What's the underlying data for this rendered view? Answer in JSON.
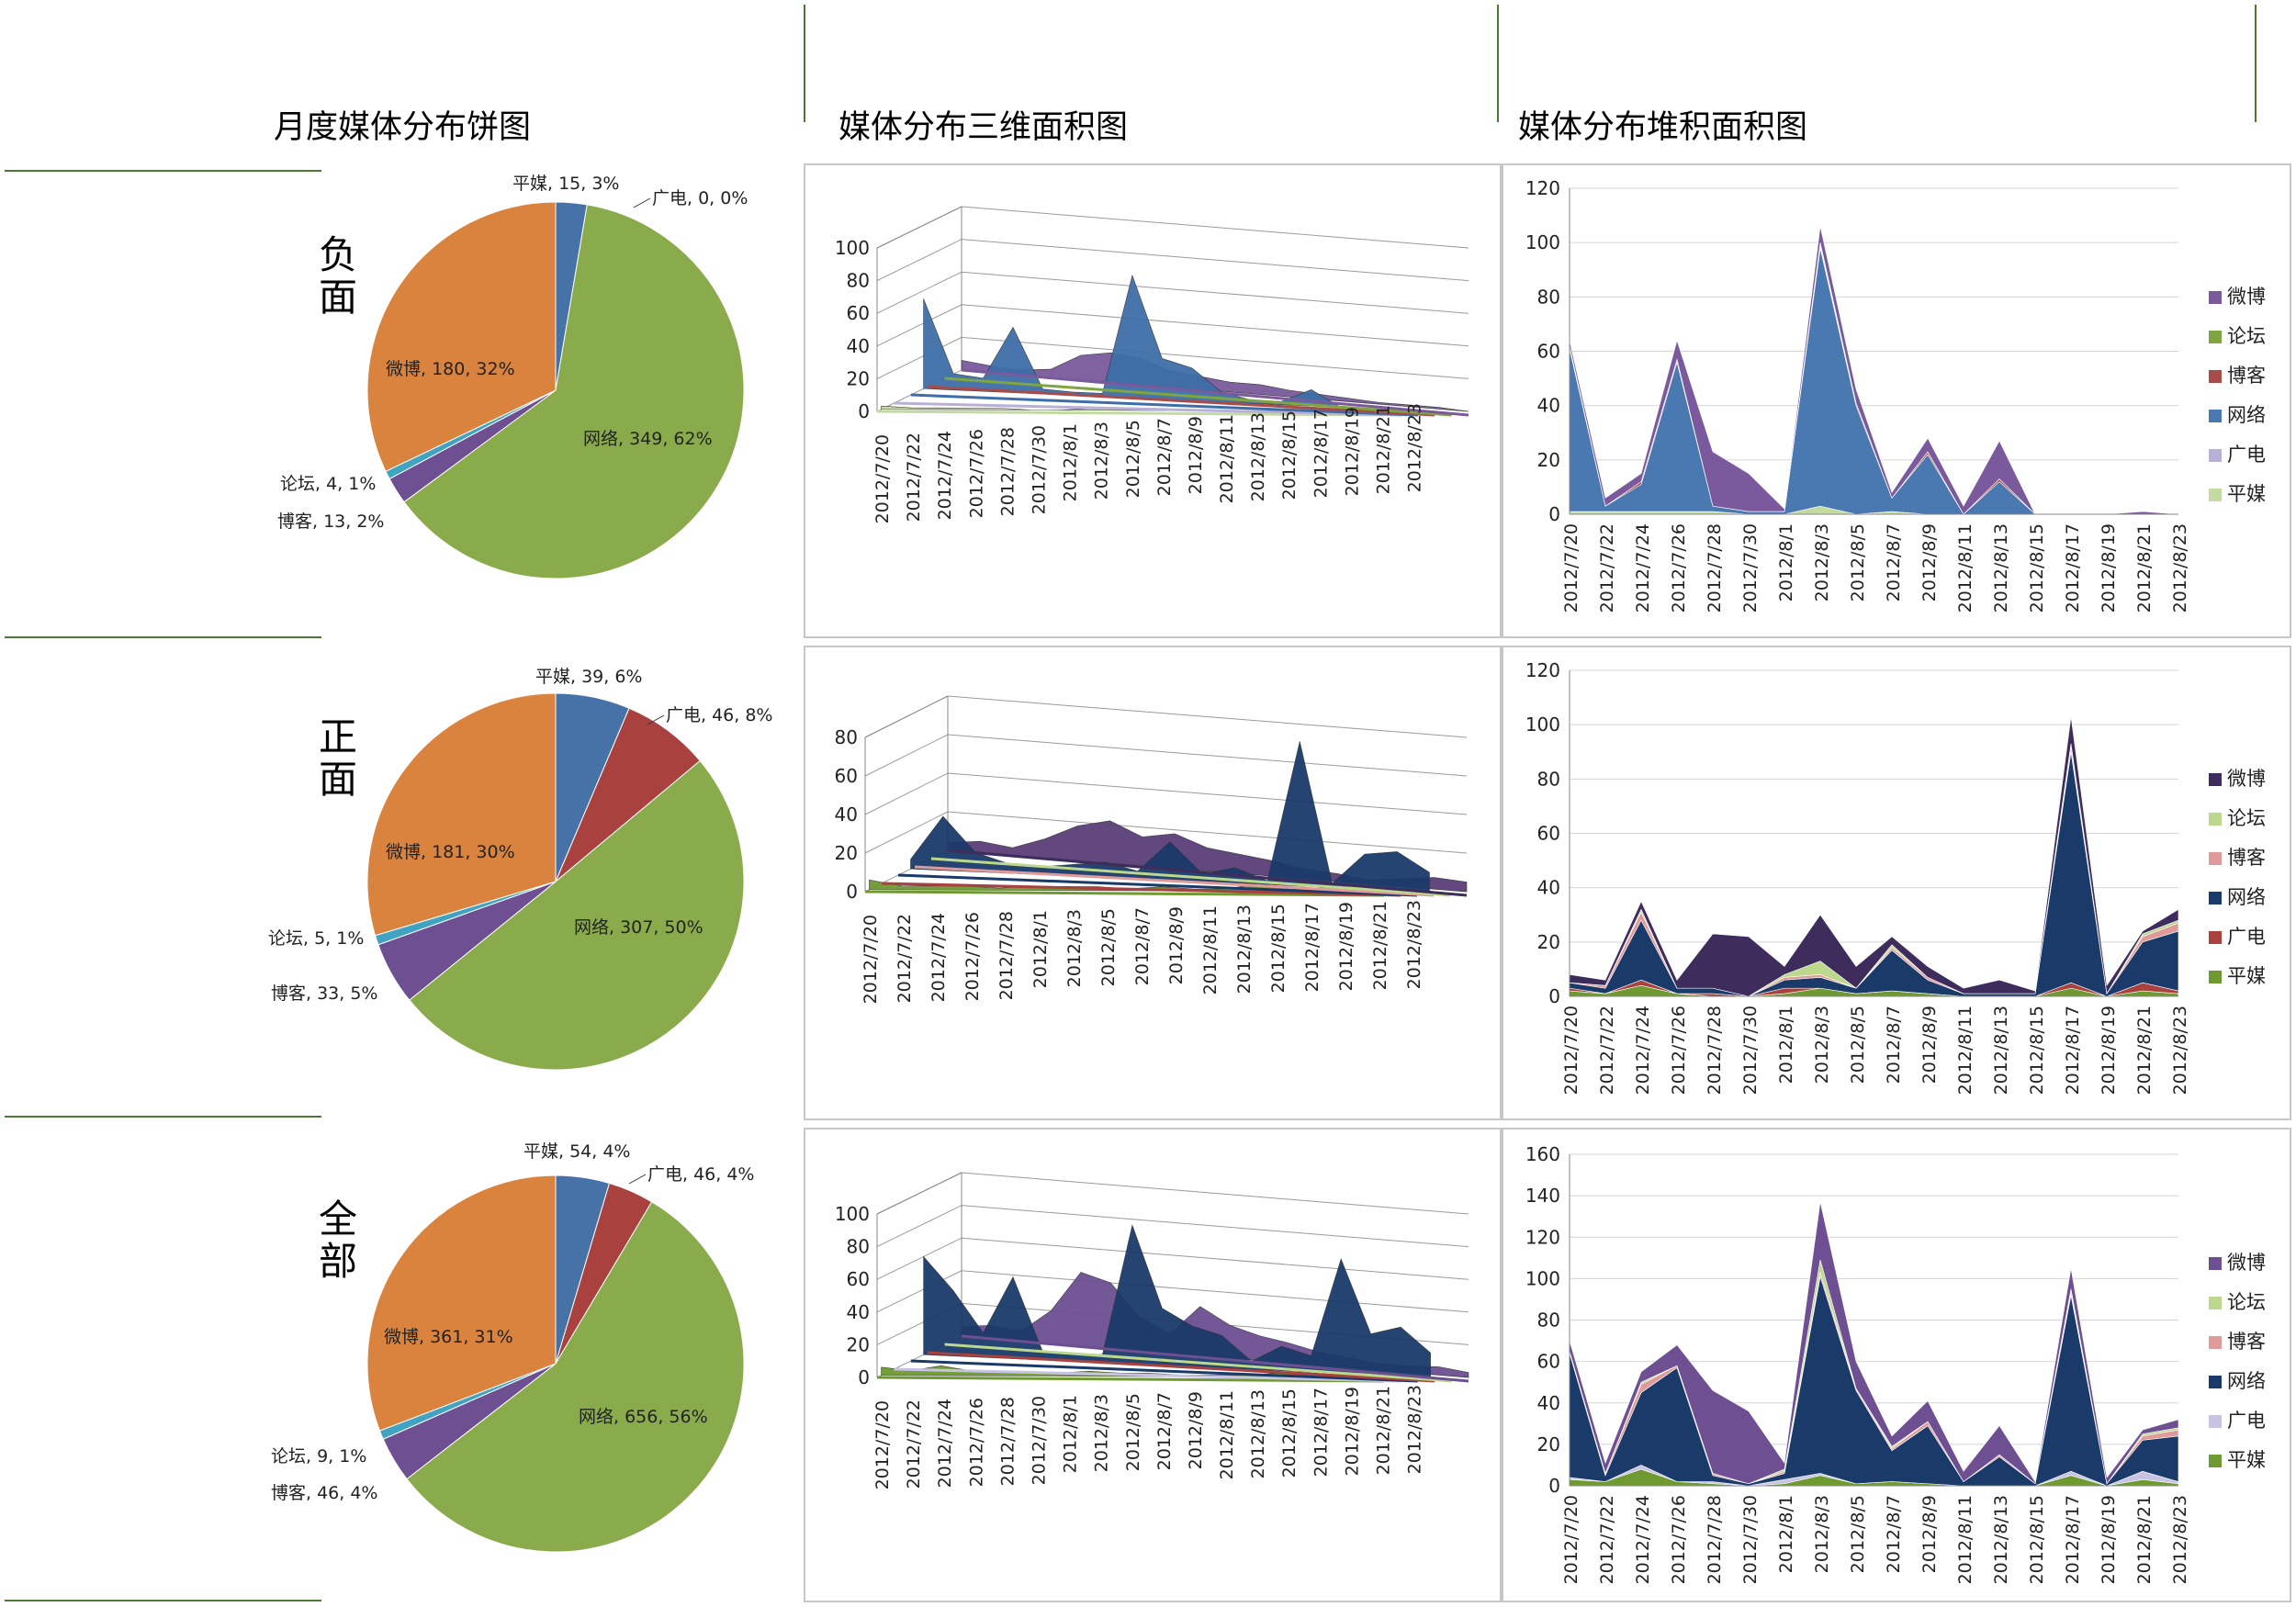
{
  "headers": {
    "pie": "月度媒体分布饼图",
    "area3d": "媒体分布三维面积图",
    "stacked": "媒体分布堆积面积图"
  },
  "rows": [
    {
      "label": "负面"
    },
    {
      "label": "正面"
    },
    {
      "label": "全部"
    }
  ],
  "colors": {
    "平媒": "#4672a8",
    "广电": "#a9413f",
    "网络": "#8aab4c",
    "博客": "#6d4f92",
    "论坛": "#40a3c2",
    "微博": "#d9833e",
    "stack_negative": {
      "微博": "#7a5a9c",
      "论坛": "#7ea540",
      "博客": "#a84c4a",
      "网络": "#4a78b0",
      "广电": "#b8b0d6",
      "平媒": "#c3dba0"
    },
    "stack_positive": {
      "微博": "#3e2d5c",
      "论坛": "#bcd88c",
      "博客": "#e09a9a",
      "网络": "#1a3a6a",
      "广电": "#a9413f",
      "平媒": "#6f9a32"
    },
    "stack_all": {
      "微博": "#6d4f92",
      "论坛": "#bcd88c",
      "博客": "#e09a9a",
      "网络": "#1a3a6a",
      "广电": "#c9c3e3",
      "平媒": "#6f9a32"
    }
  },
  "chart_data": [
    {
      "type": "pie",
      "id": "pie-neg",
      "slices": [
        {
          "name": "平媒",
          "value": 15,
          "label": "平媒, 15, 3%"
        },
        {
          "name": "广电",
          "value": 0,
          "label": "广电, 0, 0%"
        },
        {
          "name": "网络",
          "value": 349,
          "label": "网络, 349, 62%"
        },
        {
          "name": "博客",
          "value": 13,
          "label": "博客, 13, 2%"
        },
        {
          "name": "论坛",
          "value": 4,
          "label": "论坛, 4, 1%"
        },
        {
          "name": "微博",
          "value": 180,
          "label": "微博, 180, 32%"
        }
      ]
    },
    {
      "type": "pie",
      "id": "pie-pos",
      "slices": [
        {
          "name": "平媒",
          "value": 39,
          "label": "平媒, 39, 6%"
        },
        {
          "name": "广电",
          "value": 46,
          "label": "广电, 46, 8%"
        },
        {
          "name": "网络",
          "value": 307,
          "label": "网络, 307, 50%"
        },
        {
          "name": "博客",
          "value": 33,
          "label": "博客, 33, 5%"
        },
        {
          "name": "论坛",
          "value": 5,
          "label": "论坛, 5, 1%"
        },
        {
          "name": "微博",
          "value": 181,
          "label": "微博, 181, 30%"
        }
      ]
    },
    {
      "type": "pie",
      "id": "pie-all",
      "slices": [
        {
          "name": "平媒",
          "value": 54,
          "label": "平媒, 54, 4%"
        },
        {
          "name": "广电",
          "value": 46,
          "label": "广电, 46, 4%"
        },
        {
          "name": "网络",
          "value": 656,
          "label": "网络, 656, 56%"
        },
        {
          "name": "博客",
          "value": 46,
          "label": "博客, 46, 4%"
        },
        {
          "name": "论坛",
          "value": 9,
          "label": "论坛, 9, 1%"
        },
        {
          "name": "微博",
          "value": 361,
          "label": "微博, 361, 31%"
        }
      ]
    },
    {
      "type": "area",
      "id": "area3d-neg",
      "ylim": [
        0,
        100
      ],
      "yticks": [
        0,
        20,
        40,
        60,
        80,
        100
      ],
      "x": [
        "2012/7/20",
        "2012/7/22",
        "2012/7/24",
        "2012/7/26",
        "2012/7/28",
        "2012/7/30",
        "2012/8/1",
        "2012/8/3",
        "2012/8/5",
        "2012/8/7",
        "2012/8/9",
        "2012/8/11",
        "2012/8/13",
        "2012/8/15",
        "2012/8/17",
        "2012/8/19",
        "2012/8/21",
        "2012/8/23"
      ],
      "series": [
        {
          "name": "微博",
          "values": [
            6,
            4,
            3,
            5,
            15,
            18,
            16,
            10,
            8,
            6,
            6,
            4,
            3,
            2,
            1,
            1,
            1,
            0
          ]
        },
        {
          "name": "网络",
          "values": [
            55,
            10,
            8,
            40,
            3,
            2,
            2,
            75,
            25,
            20,
            6,
            2,
            2,
            10,
            0,
            0,
            0,
            0
          ]
        },
        {
          "name": "平媒",
          "values": [
            2,
            1,
            1,
            1,
            1,
            0,
            0,
            1,
            1,
            1,
            0,
            0,
            0,
            0,
            0,
            0,
            0,
            0
          ]
        }
      ]
    },
    {
      "type": "area",
      "id": "area3d-pos",
      "ylim": [
        0,
        80
      ],
      "yticks": [
        0,
        20,
        40,
        60,
        80
      ],
      "x": [
        "2012/7/20",
        "2012/7/22",
        "2012/7/24",
        "2012/7/26",
        "2012/7/28",
        "2012/8/1",
        "2012/8/3",
        "2012/8/5",
        "2012/8/7",
        "2012/8/9",
        "2012/8/11",
        "2012/8/13",
        "2012/8/15",
        "2012/8/17",
        "2012/8/19",
        "2012/8/21",
        "2012/8/23"
      ],
      "series": [
        {
          "name": "微博",
          "values": [
            4,
            6,
            4,
            10,
            18,
            22,
            15,
            18,
            12,
            10,
            8,
            5,
            4,
            2,
            4,
            6,
            5
          ]
        },
        {
          "name": "网络",
          "values": [
            5,
            28,
            10,
            5,
            4,
            6,
            8,
            4,
            20,
            4,
            8,
            2,
            75,
            2,
            18,
            20,
            10
          ]
        },
        {
          "name": "平媒",
          "values": [
            5,
            2,
            2,
            2,
            1,
            2,
            2,
            2,
            1,
            2,
            1,
            1,
            4,
            1,
            2,
            3,
            2
          ]
        }
      ]
    },
    {
      "type": "area",
      "id": "area3d-all",
      "ylim": [
        0,
        100
      ],
      "yticks": [
        0,
        20,
        40,
        60,
        80,
        100
      ],
      "x": [
        "2012/7/20",
        "2012/7/22",
        "2012/7/24",
        "2012/7/26",
        "2012/7/28",
        "2012/7/30",
        "2012/8/1",
        "2012/8/3",
        "2012/8/5",
        "2012/8/7",
        "2012/8/9",
        "2012/8/11",
        "2012/8/13",
        "2012/8/15",
        "2012/8/17",
        "2012/8/19",
        "2012/8/21",
        "2012/8/23"
      ],
      "series": [
        {
          "name": "微博",
          "values": [
            6,
            8,
            6,
            20,
            45,
            40,
            20,
            12,
            30,
            20,
            15,
            12,
            8,
            6,
            4,
            4,
            5,
            3
          ]
        },
        {
          "name": "网络",
          "values": [
            60,
            40,
            15,
            50,
            5,
            5,
            5,
            85,
            35,
            25,
            20,
            5,
            15,
            10,
            70,
            25,
            30,
            15
          ]
        },
        {
          "name": "平媒",
          "values": [
            5,
            3,
            6,
            3,
            2,
            2,
            2,
            3,
            2,
            2,
            1,
            1,
            1,
            2,
            3,
            2,
            3,
            2
          ]
        }
      ]
    },
    {
      "type": "area",
      "id": "stack-neg",
      "stacked": true,
      "ylim": [
        0,
        120
      ],
      "yticks": [
        0,
        20,
        40,
        60,
        80,
        100,
        120
      ],
      "x": [
        "2012/7/20",
        "2012/7/22",
        "2012/7/24",
        "2012/7/26",
        "2012/7/28",
        "2012/7/30",
        "2012/8/1",
        "2012/8/3",
        "2012/8/5",
        "2012/8/7",
        "2012/8/9",
        "2012/8/11",
        "2012/8/13",
        "2012/8/15",
        "2012/8/17",
        "2012/8/19",
        "2012/8/21",
        "2012/8/23"
      ],
      "legend": [
        "微博",
        "论坛",
        "博客",
        "网络",
        "广电",
        "平媒"
      ],
      "series": [
        {
          "name": "平媒",
          "values": [
            1,
            1,
            1,
            1,
            1,
            0,
            0,
            3,
            0,
            1,
            0,
            0,
            0,
            0,
            0,
            0,
            0,
            0
          ]
        },
        {
          "name": "广电",
          "values": [
            0,
            0,
            0,
            0,
            0,
            0,
            0,
            0,
            0,
            0,
            0,
            0,
            0,
            0,
            0,
            0,
            0,
            0
          ]
        },
        {
          "name": "网络",
          "values": [
            60,
            2,
            10,
            55,
            2,
            1,
            1,
            95,
            40,
            5,
            22,
            0,
            12,
            0,
            0,
            0,
            0,
            0
          ]
        },
        {
          "name": "博客",
          "values": [
            1,
            0,
            1,
            1,
            0,
            0,
            0,
            1,
            1,
            0,
            1,
            0,
            1,
            0,
            0,
            0,
            0,
            0
          ]
        },
        {
          "name": "论坛",
          "values": [
            0,
            0,
            0,
            0,
            0,
            0,
            0,
            1,
            0,
            0,
            0,
            0,
            0,
            0,
            0,
            0,
            0,
            0
          ]
        },
        {
          "name": "微博",
          "values": [
            2,
            3,
            3,
            7,
            20,
            14,
            1,
            6,
            5,
            2,
            5,
            3,
            14,
            0,
            0,
            0,
            1,
            0
          ]
        }
      ]
    },
    {
      "type": "area",
      "id": "stack-pos",
      "stacked": true,
      "ylim": [
        0,
        120
      ],
      "yticks": [
        0,
        20,
        40,
        60,
        80,
        100,
        120
      ],
      "x": [
        "2012/7/20",
        "2012/7/22",
        "2012/7/24",
        "2012/7/26",
        "2012/7/28",
        "2012/7/30",
        "2012/8/1",
        "2012/8/3",
        "2012/8/5",
        "2012/8/7",
        "2012/8/9",
        "2012/8/11",
        "2012/8/13",
        "2012/8/15",
        "2012/8/17",
        "2012/8/19",
        "2012/8/21",
        "2012/8/23"
      ],
      "legend": [
        "微博",
        "论坛",
        "博客",
        "网络",
        "广电",
        "平媒"
      ],
      "series": [
        {
          "name": "平媒",
          "values": [
            2,
            1,
            4,
            1,
            0,
            0,
            1,
            3,
            1,
            2,
            1,
            0,
            0,
            0,
            3,
            0,
            2,
            1
          ]
        },
        {
          "name": "广电",
          "values": [
            1,
            0,
            2,
            0,
            1,
            0,
            2,
            0,
            0,
            0,
            0,
            0,
            0,
            0,
            2,
            0,
            3,
            1
          ]
        },
        {
          "name": "网络",
          "values": [
            2,
            2,
            22,
            2,
            2,
            0,
            3,
            4,
            2,
            15,
            5,
            1,
            1,
            1,
            85,
            1,
            15,
            22
          ]
        },
        {
          "name": "博客",
          "values": [
            0,
            1,
            3,
            0,
            0,
            0,
            1,
            1,
            0,
            1,
            1,
            0,
            0,
            0,
            2,
            0,
            2,
            3
          ]
        },
        {
          "name": "论坛",
          "values": [
            0,
            0,
            1,
            0,
            0,
            0,
            1,
            5,
            0,
            1,
            0,
            0,
            0,
            0,
            1,
            0,
            1,
            1
          ]
        },
        {
          "name": "微博",
          "values": [
            3,
            2,
            3,
            3,
            20,
            22,
            3,
            17,
            8,
            3,
            4,
            2,
            5,
            1,
            10,
            3,
            1,
            4
          ]
        }
      ]
    },
    {
      "type": "area",
      "id": "stack-all",
      "stacked": true,
      "ylim": [
        0,
        160
      ],
      "yticks": [
        0,
        20,
        40,
        60,
        80,
        100,
        120,
        140,
        160
      ],
      "x": [
        "2012/7/20",
        "2012/7/22",
        "2012/7/24",
        "2012/7/26",
        "2012/7/28",
        "2012/7/30",
        "2012/8/1",
        "2012/8/3",
        "2012/8/5",
        "2012/8/7",
        "2012/8/9",
        "2012/8/11",
        "2012/8/13",
        "2012/8/15",
        "2012/8/17",
        "2012/8/19",
        "2012/8/21",
        "2012/8/23"
      ],
      "legend": [
        "微博",
        "论坛",
        "博客",
        "网络",
        "广电",
        "平媒"
      ],
      "series": [
        {
          "name": "平媒",
          "values": [
            3,
            2,
            8,
            2,
            1,
            0,
            1,
            5,
            1,
            2,
            1,
            0,
            0,
            0,
            5,
            0,
            3,
            1
          ]
        },
        {
          "name": "广电",
          "values": [
            1,
            0,
            2,
            0,
            1,
            0,
            2,
            1,
            0,
            0,
            0,
            0,
            0,
            0,
            2,
            0,
            4,
            1
          ]
        },
        {
          "name": "网络",
          "values": [
            60,
            3,
            35,
            55,
            3,
            1,
            3,
            95,
            45,
            15,
            28,
            2,
            14,
            1,
            85,
            1,
            15,
            22
          ]
        },
        {
          "name": "博客",
          "values": [
            1,
            1,
            4,
            1,
            1,
            0,
            1,
            2,
            1,
            1,
            2,
            0,
            1,
            0,
            2,
            0,
            2,
            3
          ]
        },
        {
          "name": "论坛",
          "values": [
            0,
            0,
            1,
            0,
            0,
            0,
            1,
            6,
            0,
            1,
            0,
            0,
            0,
            0,
            1,
            0,
            1,
            1
          ]
        },
        {
          "name": "微博",
          "values": [
            5,
            5,
            5,
            10,
            40,
            35,
            3,
            28,
            13,
            5,
            10,
            5,
            14,
            1,
            10,
            3,
            2,
            4
          ]
        }
      ]
    }
  ]
}
